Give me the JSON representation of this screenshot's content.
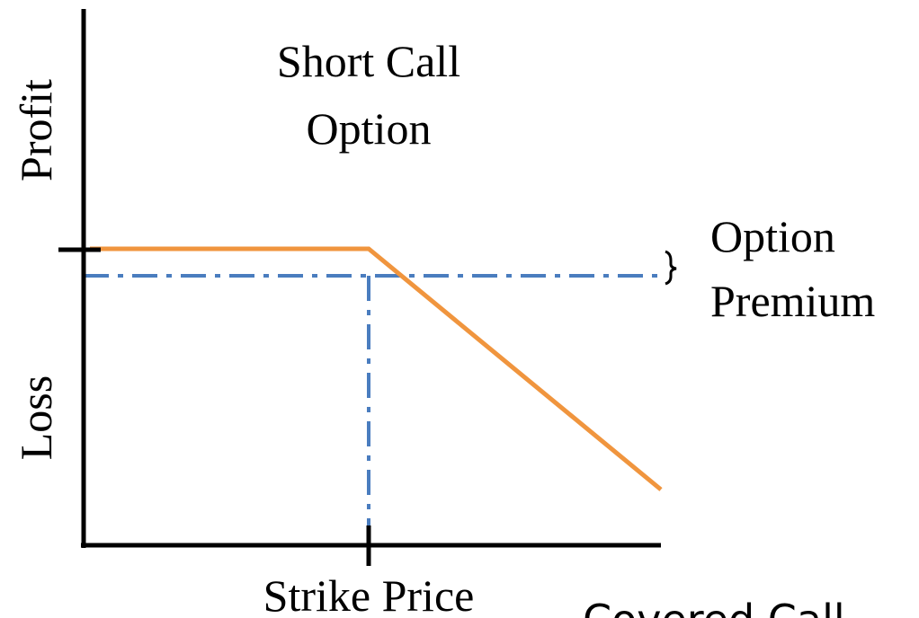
{
  "title": {
    "line1": "Short Call",
    "line2": "Option"
  },
  "axes": {
    "y_top": "Profit",
    "y_bottom": "Loss",
    "x": "Strike Price"
  },
  "annotation": {
    "line1": "Option",
    "line2": "Premium"
  },
  "caption": "Covered Call"
}
